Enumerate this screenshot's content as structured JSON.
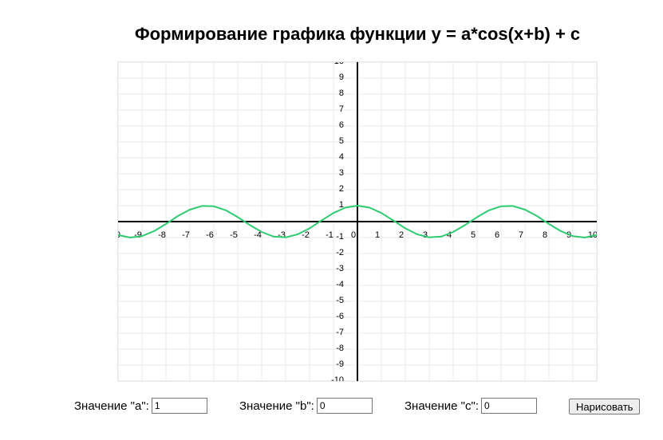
{
  "title": "Формирование графика функции y = a*cos(x+b) + c",
  "chart_data": {
    "type": "line",
    "x": [
      -10,
      -9.5,
      -9,
      -8.5,
      -8,
      -7.5,
      -7,
      -6.5,
      -6,
      -5.5,
      -5,
      -4.5,
      -4,
      -3.5,
      -3,
      -2.5,
      -2,
      -1.5,
      -1,
      -0.5,
      0,
      0.5,
      1,
      1.5,
      2,
      2.5,
      3,
      3.5,
      4,
      4.5,
      5,
      5.5,
      6,
      6.5,
      7,
      7.5,
      8,
      8.5,
      9,
      9.5,
      10
    ],
    "series": [
      {
        "color": "#2ecc71",
        "values": [
          -0.84,
          -1.0,
          -0.91,
          -0.6,
          -0.15,
          0.35,
          0.75,
          0.98,
          0.96,
          0.71,
          0.28,
          -0.21,
          -0.65,
          -0.94,
          -0.99,
          -0.8,
          -0.42,
          0.07,
          0.54,
          0.88,
          1,
          0.88,
          0.54,
          0.07,
          -0.42,
          -0.8,
          -0.99,
          -0.94,
          -0.65,
          -0.21,
          0.28,
          0.71,
          0.96,
          0.98,
          0.75,
          0.35,
          -0.15,
          -0.6,
          -0.91,
          -1.0,
          -0.84
        ]
      }
    ],
    "xlim": [
      -10,
      10
    ],
    "ylim": [
      -10,
      10
    ],
    "xticks": [
      -10,
      -9,
      -8,
      -7,
      -6,
      -5,
      -4,
      -3,
      -2,
      -1,
      0,
      1,
      2,
      3,
      4,
      5,
      6,
      7,
      8,
      9,
      10
    ],
    "yticks": [
      -10,
      -9,
      -8,
      -7,
      -6,
      -5,
      -4,
      -3,
      -2,
      -1,
      1,
      2,
      3,
      4,
      5,
      6,
      7,
      8,
      9,
      10
    ],
    "grid": true
  },
  "controls": {
    "a_label": "Значение \"a\":",
    "a_value": "1",
    "b_label": "Значение \"b\":",
    "b_value": "0",
    "c_label": "Значение \"c\":",
    "c_value": "0",
    "button": "Нарисовать"
  }
}
